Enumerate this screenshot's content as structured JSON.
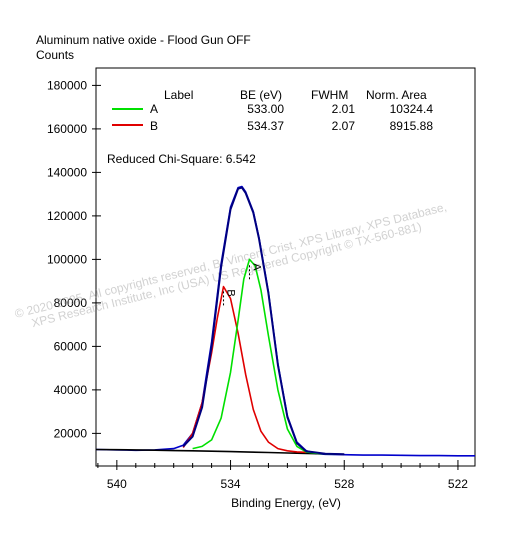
{
  "chart_data": {
    "type": "line",
    "title": "Aluminum native oxide - Flood Gun OFF",
    "ylabel": "Counts",
    "xlabel": "Binding Energy, (eV)",
    "x_reversed": true,
    "xlim": [
      541.1,
      521.1
    ],
    "ylim": [
      5000,
      188000
    ],
    "x_ticks": [
      540,
      534,
      528,
      522
    ],
    "y_ticks": [
      20000,
      40000,
      60000,
      80000,
      100000,
      120000,
      140000,
      160000,
      180000
    ],
    "x_tick_labels": [
      "540",
      "534",
      "528",
      "522"
    ],
    "y_tick_labels": [
      "20000",
      "40000",
      "60000",
      "80000",
      "100000",
      "120000",
      "140000",
      "160000",
      "180000"
    ],
    "legend": {
      "headers": {
        "label": "Label",
        "be": "BE (eV)",
        "fwhm": "FWHM",
        "area": "Norm. Area"
      },
      "placement": "top",
      "rows": [
        {
          "label": "A",
          "be": "533.00",
          "fwhm": "2.01",
          "area": "10324.4",
          "color": "#00e000"
        },
        {
          "label": "B",
          "be": "534.37",
          "fwhm": "2.07",
          "area": "8915.88",
          "color": "#e00000"
        }
      ]
    },
    "annotation": "Reduced Chi-Square: 6.542",
    "peak_markers": [
      {
        "label": "A",
        "x": 533.0
      },
      {
        "label": "B",
        "x": 534.37
      }
    ],
    "watermark_lines": [
      "© 2020-2025, All copyrights reserved, B. Vincent Crist, XPS Library, XPS Database,",
      "XPS Research Institute, Inc (USA) US Registered Copyright © TX-560-881)"
    ],
    "components": {
      "A": {
        "center": 533.0,
        "fwhm": 2.01,
        "height": 89000
      },
      "B": {
        "center": 534.37,
        "fwhm": 2.07,
        "height": 77000
      }
    },
    "series": [
      {
        "key": "raw",
        "color": "#0000cc",
        "points": [
          [
            541.1,
            12600
          ],
          [
            540,
            12400
          ],
          [
            539,
            12200
          ],
          [
            538,
            12400
          ],
          [
            537,
            13000
          ],
          [
            536.5,
            14500
          ],
          [
            536,
            20000
          ],
          [
            535.5,
            34000
          ],
          [
            535,
            62000
          ],
          [
            534.5,
            98000
          ],
          [
            534,
            124000
          ],
          [
            533.6,
            133000
          ],
          [
            533.4,
            133500
          ],
          [
            533.2,
            131000
          ],
          [
            532.8,
            122000
          ],
          [
            532.5,
            110000
          ],
          [
            532,
            85000
          ],
          [
            531.5,
            52000
          ],
          [
            531,
            28000
          ],
          [
            530.5,
            16000
          ],
          [
            530,
            12000
          ],
          [
            529.5,
            10700
          ],
          [
            529,
            10400
          ],
          [
            528,
            10200
          ],
          [
            527,
            10000
          ],
          [
            526,
            10000
          ],
          [
            525,
            9900
          ],
          [
            524,
            9800
          ],
          [
            523,
            9800
          ],
          [
            522,
            9700
          ],
          [
            521.1,
            9700
          ]
        ]
      },
      {
        "key": "envelope",
        "color": "#000080",
        "points": [
          [
            536.5,
            14000
          ],
          [
            536,
            18500
          ],
          [
            535.5,
            32000
          ],
          [
            535,
            60000
          ],
          [
            534.5,
            96500
          ],
          [
            534,
            123000
          ],
          [
            533.6,
            132500
          ],
          [
            533.4,
            133000
          ],
          [
            533.2,
            130500
          ],
          [
            532.8,
            121500
          ],
          [
            532.5,
            109500
          ],
          [
            532,
            84500
          ],
          [
            531.5,
            51500
          ],
          [
            531,
            27500
          ],
          [
            530.5,
            15500
          ],
          [
            530,
            11800
          ],
          [
            529,
            10600
          ],
          [
            528,
            10400
          ]
        ]
      },
      {
        "key": "A",
        "color": "#00e000",
        "points": [
          [
            536,
            13000
          ],
          [
            535.5,
            14000
          ],
          [
            535,
            17000
          ],
          [
            534.5,
            27000
          ],
          [
            534,
            48000
          ],
          [
            533.6,
            72000
          ],
          [
            533.3,
            91000
          ],
          [
            533,
            100000
          ],
          [
            532.7,
            97000
          ],
          [
            532.4,
            86000
          ],
          [
            532,
            65000
          ],
          [
            531.5,
            40000
          ],
          [
            531,
            22000
          ],
          [
            530.5,
            14000
          ],
          [
            530,
            11500
          ],
          [
            529.5,
            10900
          ],
          [
            529,
            10600
          ],
          [
            528.5,
            10400
          ]
        ]
      },
      {
        "key": "B",
        "color": "#e00000",
        "points": [
          [
            536.5,
            13500
          ],
          [
            536,
            20000
          ],
          [
            535.5,
            34000
          ],
          [
            535,
            57000
          ],
          [
            534.7,
            73000
          ],
          [
            534.37,
            87500
          ],
          [
            534,
            82000
          ],
          [
            533.6,
            66000
          ],
          [
            533.2,
            47000
          ],
          [
            532.8,
            31000
          ],
          [
            532.4,
            21000
          ],
          [
            532,
            16000
          ],
          [
            531.5,
            13000
          ],
          [
            531,
            12000
          ],
          [
            530.5,
            11500
          ],
          [
            530,
            11300
          ]
        ]
      },
      {
        "key": "background",
        "color": "#000000",
        "points": [
          [
            541.1,
            12600
          ],
          [
            540,
            12500
          ],
          [
            539,
            12400
          ],
          [
            538,
            12250
          ],
          [
            537,
            12100
          ],
          [
            536.5,
            12050
          ],
          [
            536,
            12000
          ],
          [
            535,
            11800
          ],
          [
            534,
            11600
          ],
          [
            533,
            11400
          ],
          [
            532,
            11200
          ],
          [
            531,
            11000
          ],
          [
            530,
            10800
          ],
          [
            529,
            10600
          ],
          [
            528,
            10400
          ]
        ]
      }
    ]
  }
}
